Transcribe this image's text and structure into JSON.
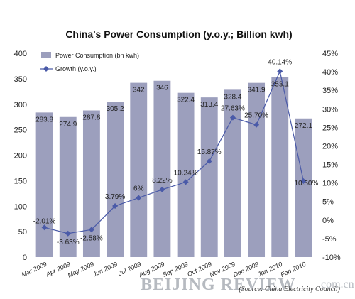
{
  "chart_data": {
    "type": "bar",
    "title": "China's Power Consumption (y.o.y.; Billion kwh)",
    "categories": [
      "Mar 2009",
      "Apr 2009",
      "May 2009",
      "Jun 2009",
      "Jul 2009",
      "Aug 2009",
      "Sep 2009",
      "Oct 2009",
      "Nov 2009",
      "Dec 2009",
      "Jan 2010",
      "Feb 2010"
    ],
    "series": [
      {
        "name": "Power Consumption (bn kwh)",
        "type": "bar",
        "axis": "left",
        "values": [
          283.8,
          274.9,
          287.8,
          305.2,
          342,
          346,
          322.4,
          313.4,
          328.4,
          341.9,
          353.1,
          272.1
        ],
        "labels": [
          "283.8",
          "274.9",
          "287.8",
          "305.2",
          "342",
          "346",
          "322.4",
          "313.4",
          "328.4",
          "341.9",
          "353.1",
          "272.1"
        ],
        "color": "#9c9fbd"
      },
      {
        "name": "Growth (y.o.y.)",
        "type": "line",
        "axis": "right",
        "values": [
          -2.01,
          -3.63,
          -2.58,
          3.79,
          6,
          8.22,
          10.24,
          15.87,
          27.63,
          25.7,
          40.14,
          10.5
        ],
        "labels": [
          "-2.01%",
          "-3.63%",
          "-2.58%",
          "3.79%",
          "6%",
          "8.22%",
          "10.24%",
          "15.87%",
          "27.63%",
          "25.70%",
          "40.14%",
          "10.50%"
        ],
        "color": "#4a5aa8"
      }
    ],
    "y_left": {
      "min": 0,
      "max": 400,
      "ticks": [
        "0",
        "50",
        "100",
        "150",
        "200",
        "250",
        "300",
        "350",
        "400"
      ]
    },
    "y_right": {
      "min": -10,
      "max": 45,
      "ticks": [
        "-10%",
        "-5%",
        "0%",
        "5%",
        "10%",
        "15%",
        "20%",
        "25%",
        "30%",
        "35%",
        "40%",
        "45%"
      ]
    },
    "legend_position": "top-left",
    "grid": false
  },
  "watermark": {
    "brand": "BEIJING REVIEW",
    "domain": ".com.cn",
    "source": "(Source: China Electricity Council)"
  }
}
